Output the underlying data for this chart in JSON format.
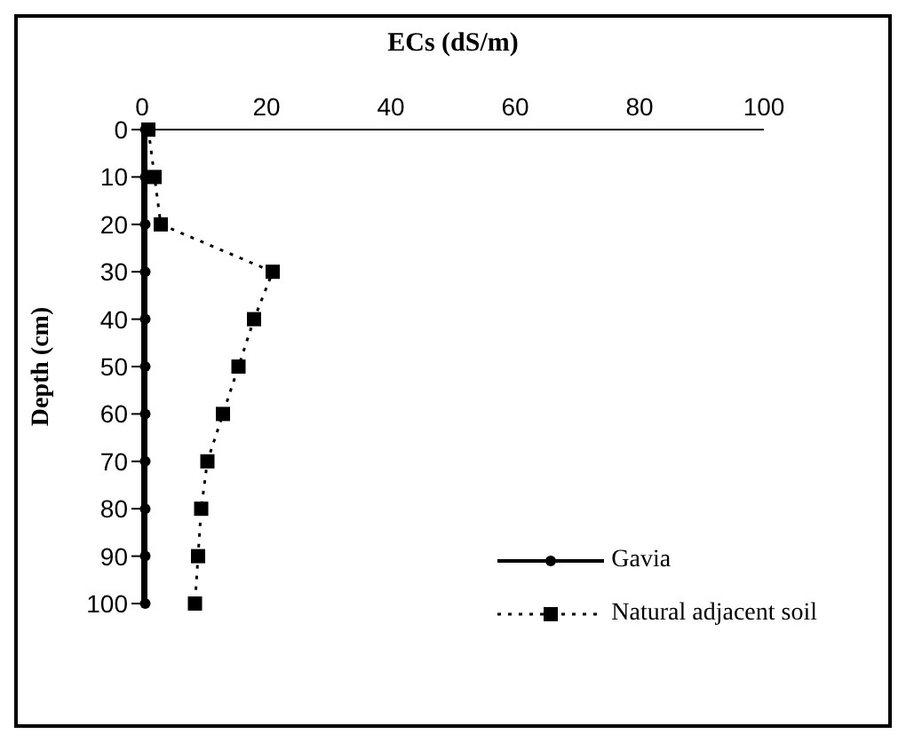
{
  "chart_data": {
    "type": "line",
    "xlabel": "ECs (dS/m)",
    "ylabel": "Depth (cm)",
    "xlim": [
      0,
      100
    ],
    "xticks": [
      0,
      20,
      40,
      60,
      80,
      100
    ],
    "ylim": [
      100,
      0
    ],
    "yticks": [
      0,
      10,
      20,
      30,
      40,
      50,
      60,
      70,
      80,
      90,
      100
    ],
    "grid": false,
    "legend": "bottom right",
    "series": [
      {
        "name": "Gavia",
        "color": "#000000",
        "marker": "circle",
        "line_style": "solid",
        "x": [
          0.5,
          0.5,
          0.5,
          0.5,
          0.5,
          0.5,
          0.5,
          0.5,
          0.5,
          0.5,
          0.5
        ],
        "values": [
          0,
          10,
          20,
          30,
          40,
          50,
          60,
          70,
          80,
          90,
          100
        ]
      },
      {
        "name": "Natural adjacent soil",
        "color": "#000000",
        "marker": "square",
        "line_style": "dotted",
        "x": [
          1,
          2,
          3,
          21,
          18,
          15.5,
          13,
          10.5,
          9.5,
          9,
          8.5
        ],
        "values": [
          0,
          10,
          20,
          30,
          40,
          50,
          60,
          70,
          80,
          90,
          100
        ]
      }
    ]
  }
}
